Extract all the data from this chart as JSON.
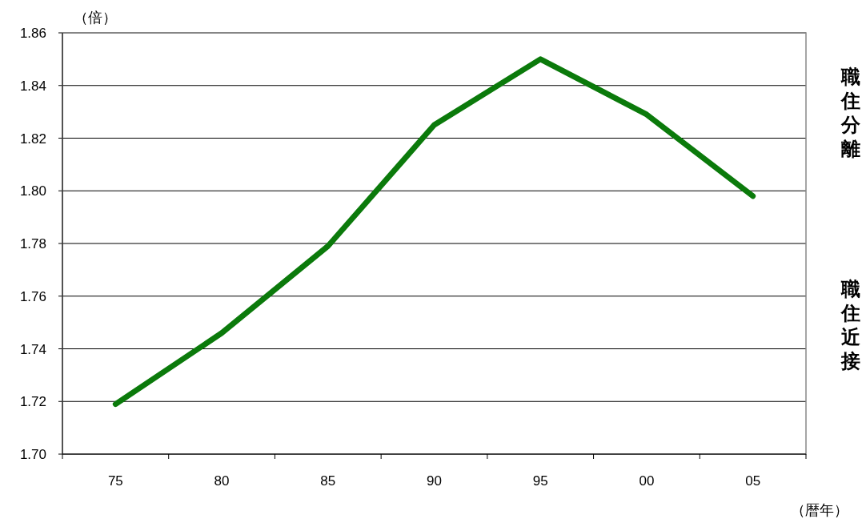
{
  "chart_data": {
    "type": "line",
    "ylabel": "（倍）",
    "xlabel": "（暦年）",
    "categories": [
      "75",
      "80",
      "85",
      "90",
      "95",
      "00",
      "05"
    ],
    "series": [
      {
        "color": "#0b7a0b",
        "values": [
          1.719,
          1.746,
          1.779,
          1.825,
          1.85,
          1.829,
          1.798
        ]
      }
    ],
    "ylim": [
      1.7,
      1.86
    ],
    "yticks": [
      {
        "value": 1.7,
        "label": "1.70"
      },
      {
        "value": 1.72,
        "label": "1.72"
      },
      {
        "value": 1.74,
        "label": "1.74"
      },
      {
        "value": 1.76,
        "label": "1.76"
      },
      {
        "value": 1.78,
        "label": "1.78"
      },
      {
        "value": 1.8,
        "label": "1.80"
      },
      {
        "value": 1.82,
        "label": "1.82"
      },
      {
        "value": 1.84,
        "label": "1.84"
      },
      {
        "value": 1.86,
        "label": "1.86"
      }
    ],
    "grid": "y",
    "marker": "none",
    "line_style": "solid",
    "annotations": [
      "職住分離",
      "職住近接"
    ]
  }
}
